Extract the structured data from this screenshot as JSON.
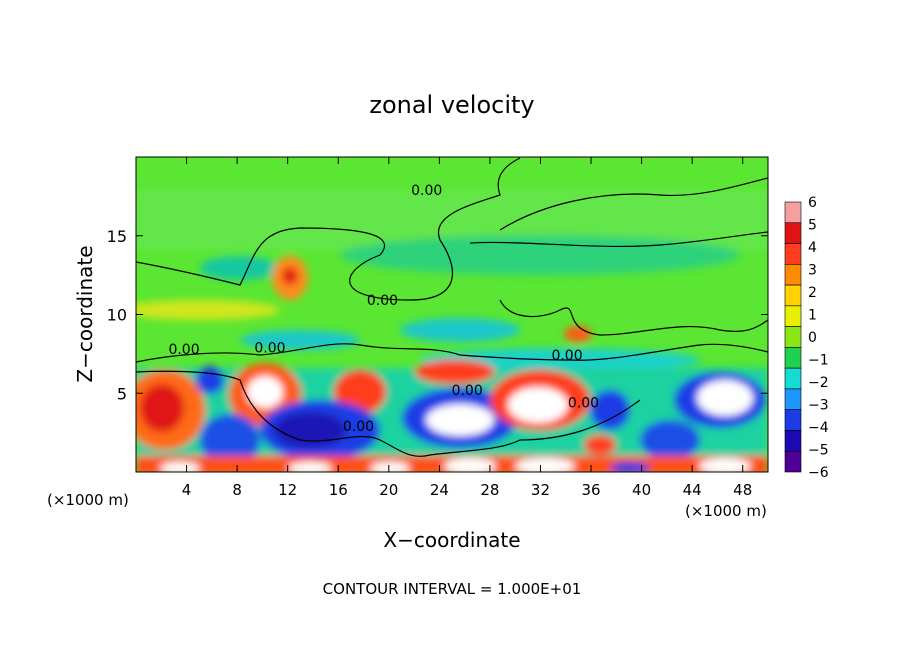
{
  "chart_data": {
    "type": "heatmap",
    "title": "zonal velocity",
    "xlabel": "X−coordinate",
    "ylabel": "Z−coordinate",
    "x_unit_left": "(×1000 m)",
    "x_unit_right": "(×1000 m)",
    "footer": "CONTOUR INTERVAL = 1.000E+01",
    "xlim": [
      0,
      50
    ],
    "ylim": [
      0,
      20
    ],
    "x_ticks": [
      "4",
      "8",
      "12",
      "16",
      "20",
      "24",
      "28",
      "32",
      "36",
      "40",
      "44",
      "48"
    ],
    "x_tick_values": [
      4,
      8,
      12,
      16,
      20,
      24,
      28,
      32,
      36,
      40,
      44,
      48
    ],
    "y_ticks": [
      "5",
      "10",
      "15"
    ],
    "y_tick_values": [
      5,
      10,
      15
    ],
    "colorbar": {
      "labels": [
        "6",
        "5",
        "4",
        "3",
        "2",
        "1",
        "0",
        "−1",
        "−2",
        "−3",
        "−4",
        "−5",
        "−6"
      ],
      "levels": [
        6,
        5,
        4,
        3,
        2,
        1,
        0,
        -1,
        -2,
        -3,
        -4,
        -5,
        -6
      ],
      "colors": [
        "#f5a0a0",
        "#e01414",
        "#ff3c1e",
        "#ff8c00",
        "#ffd200",
        "#e6f000",
        "#8ce614",
        "#1ed250",
        "#14dcd2",
        "#1e96ff",
        "#1e3ce6",
        "#1e0ab4",
        "#500096"
      ]
    },
    "contour_labels": [
      {
        "text": "0.00",
        "x": 23,
        "y": 17.6
      },
      {
        "text": "0.00",
        "x": 19.5,
        "y": 10.6
      },
      {
        "text": "0.00",
        "x": 3.8,
        "y": 7.5
      },
      {
        "text": "0.00",
        "x": 10.6,
        "y": 7.6
      },
      {
        "text": "0.00",
        "x": 34.1,
        "y": 7.1
      },
      {
        "text": "0.00",
        "x": 26.2,
        "y": 4.9
      },
      {
        "text": "0.00",
        "x": 17.6,
        "y": 2.6
      },
      {
        "text": "0.00",
        "x": 35.4,
        "y": 4.1
      }
    ]
  }
}
